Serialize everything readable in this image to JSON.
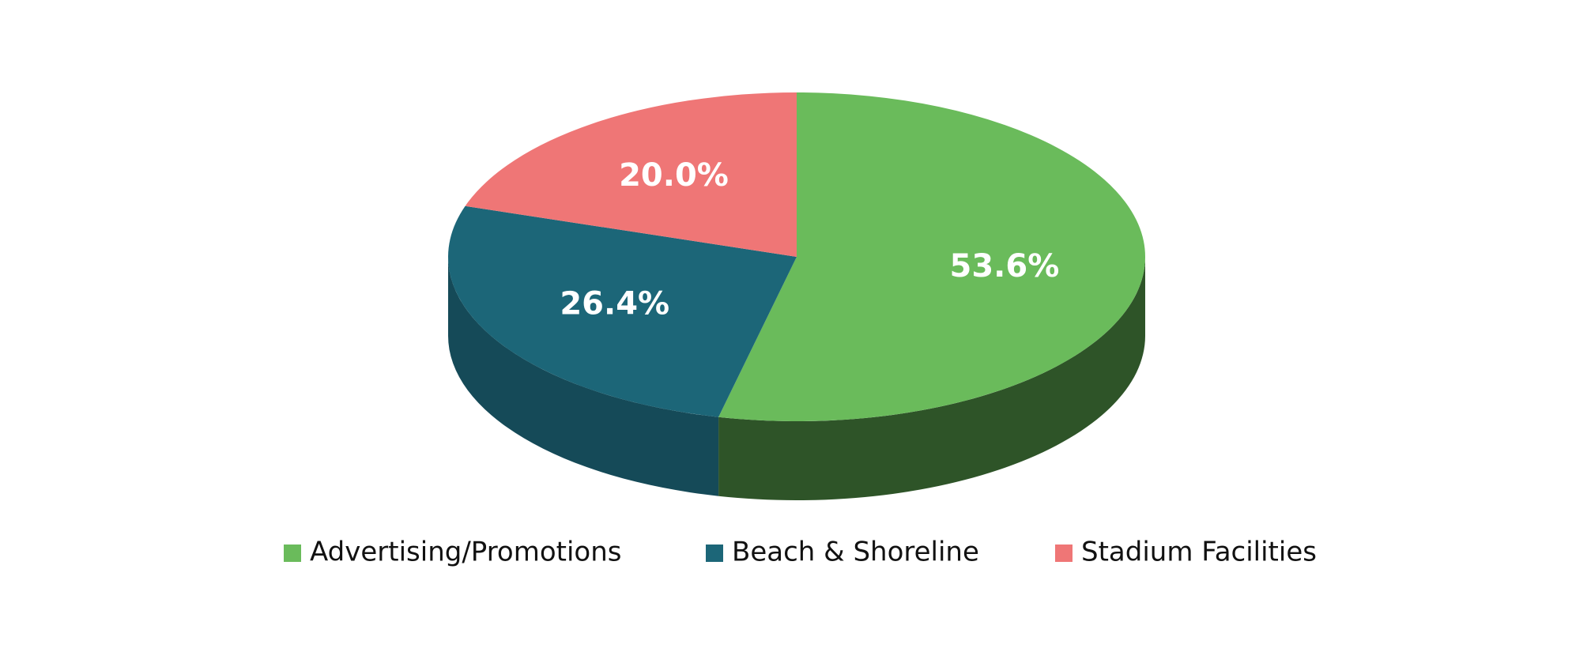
{
  "chart_data": {
    "type": "pie3d",
    "categories": [
      "Advertising/Promotions",
      "Beach & Shoreline",
      "Stadium Facilities"
    ],
    "values": [
      53.6,
      26.4,
      20.0
    ],
    "value_labels": [
      "53.6%",
      "26.4%",
      "20.0%"
    ],
    "colors": [
      "#6abb5b",
      "#1c6678",
      "#ef7676"
    ],
    "wall_colors": [
      "#2e5428",
      "#154a58",
      "#b85858"
    ],
    "legend": "bottom"
  }
}
